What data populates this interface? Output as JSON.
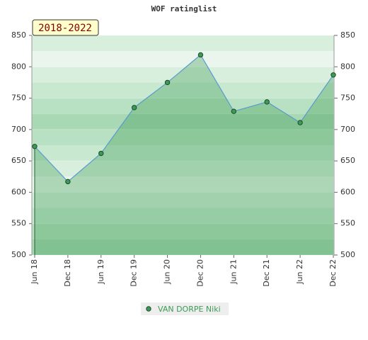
{
  "chart_data": {
    "type": "area",
    "title": "WOF ratinglist",
    "period_label": "2018-2022",
    "categories": [
      "Jun 18",
      "Dec 18",
      "Jun 19",
      "Dec 19",
      "Jun 20",
      "Dec 20",
      "Jun 21",
      "Dec 21",
      "Jun 22",
      "Dec 22"
    ],
    "series": [
      {
        "name": "VAN DORPE Niki",
        "color": "#3c9a54",
        "values": [
          673,
          617,
          662,
          735,
          775,
          819,
          729,
          744,
          711,
          787
        ]
      }
    ],
    "ylim": [
      500,
      850
    ],
    "yticks": [
      500,
      550,
      600,
      650,
      700,
      750,
      800,
      850
    ],
    "grid": true
  }
}
